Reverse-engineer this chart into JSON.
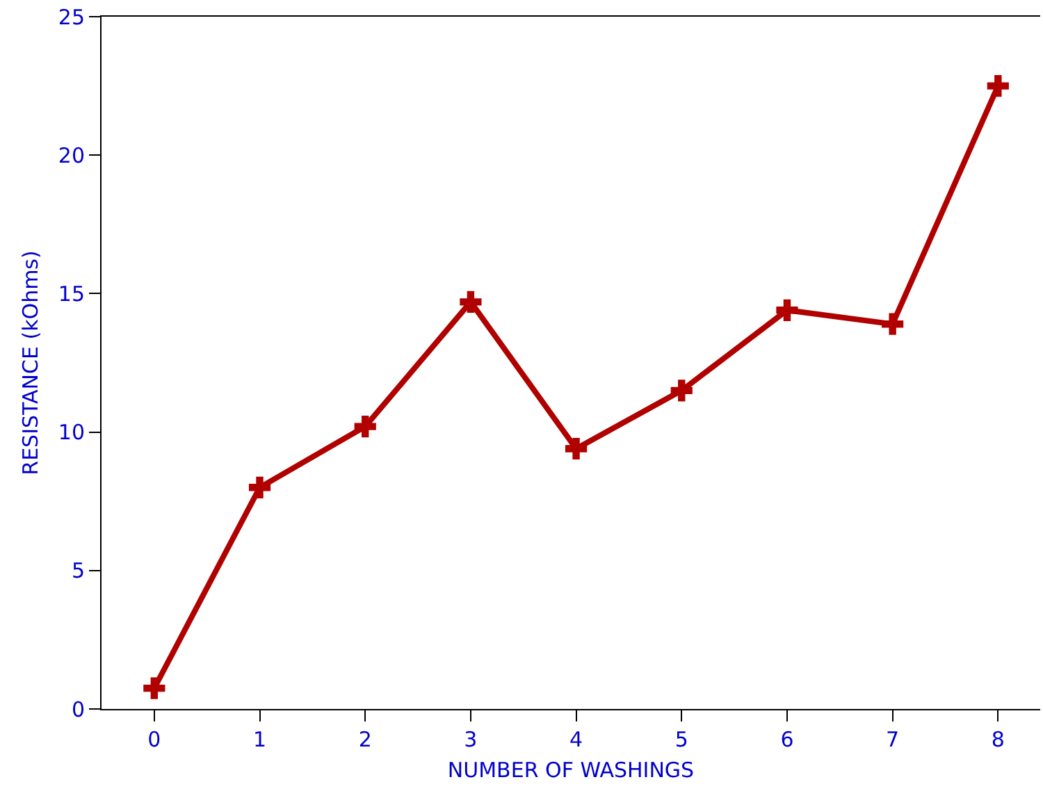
{
  "chart_data": {
    "type": "line",
    "xlabel": "NUMBER OF WASHINGS",
    "ylabel": "RESISTANCE (kOhms)",
    "x": [
      0,
      1,
      2,
      3,
      4,
      5,
      6,
      7,
      8
    ],
    "series": [
      {
        "color": "#b00000",
        "values": [
          0.75,
          8.0,
          10.2,
          14.7,
          9.4,
          11.5,
          14.4,
          13.9,
          22.5
        ]
      }
    ],
    "xlim": [
      -0.5,
      8.4
    ],
    "xticks": [
      0,
      1,
      2,
      3,
      4,
      5,
      6,
      7,
      8
    ],
    "ylim": [
      0,
      25
    ],
    "yticks": [
      0,
      5,
      10,
      15,
      20,
      25
    ],
    "grid": false,
    "legend": false,
    "marker": "cross",
    "line_style": "solid"
  }
}
